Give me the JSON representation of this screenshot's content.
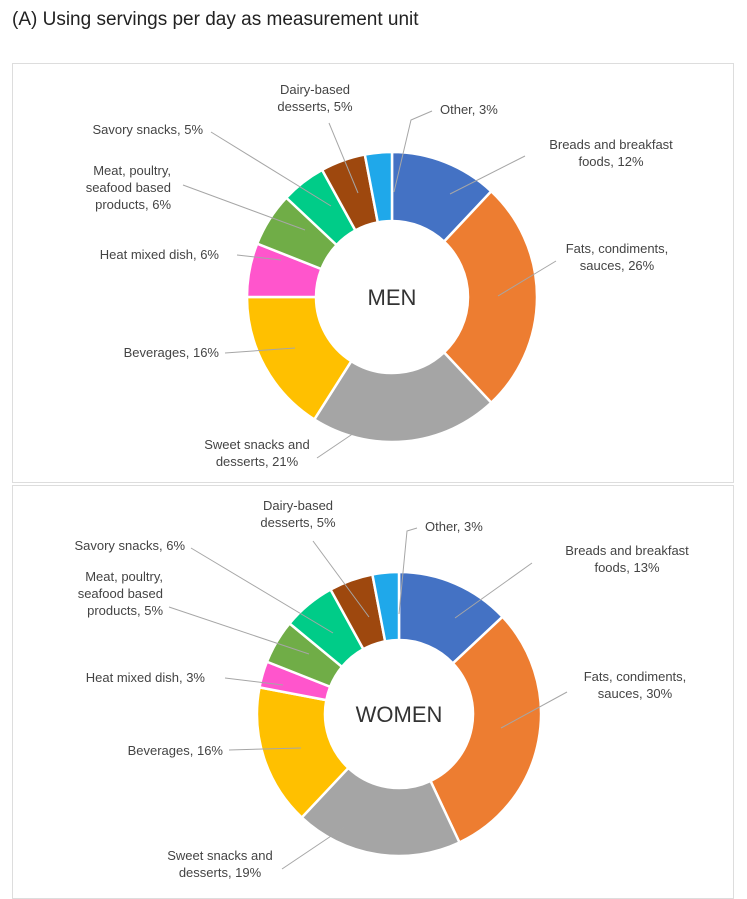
{
  "title": "(A) Using servings per day as measurement unit",
  "chart_data": [
    {
      "type": "pie",
      "center_label": "MEN",
      "slices": [
        {
          "key": "breads",
          "lines": [
            "Breads and breakfast",
            "foods, 12%"
          ],
          "value": 12,
          "color": "#4472c4"
        },
        {
          "key": "fats",
          "lines": [
            "Fats, condiments,",
            "sauces, 26%"
          ],
          "value": 26,
          "color": "#ed7d31"
        },
        {
          "key": "sweet",
          "lines": [
            "Sweet snacks and",
            "desserts, 21%"
          ],
          "value": 21,
          "color": "#a5a5a5"
        },
        {
          "key": "beverages",
          "lines": [
            "Beverages, 16%"
          ],
          "value": 16,
          "color": "#ffc000"
        },
        {
          "key": "heat",
          "lines": [
            "Heat mixed dish, 6%"
          ],
          "value": 6,
          "color": "#ff55cc"
        },
        {
          "key": "meat",
          "lines": [
            "Meat, poultry,",
            "seafood based",
            "products, 6%"
          ],
          "value": 6,
          "color": "#70ad47"
        },
        {
          "key": "savory",
          "lines": [
            "Savory snacks, 5%"
          ],
          "value": 5,
          "color": "#00cc88"
        },
        {
          "key": "dairy",
          "lines": [
            "Dairy-based",
            "desserts, 5%"
          ],
          "value": 5,
          "color": "#9e480e"
        },
        {
          "key": "other",
          "lines": [
            "Other, 3%"
          ],
          "value": 3,
          "color": "#1fa8ea"
        }
      ]
    },
    {
      "type": "pie",
      "center_label": "WOMEN",
      "slices": [
        {
          "key": "breads",
          "lines": [
            "Breads and breakfast",
            "foods, 13%"
          ],
          "value": 13,
          "color": "#4472c4"
        },
        {
          "key": "fats",
          "lines": [
            "Fats, condiments,",
            "sauces, 30%"
          ],
          "value": 30,
          "color": "#ed7d31"
        },
        {
          "key": "sweet",
          "lines": [
            "Sweet snacks and",
            "desserts, 19%"
          ],
          "value": 19,
          "color": "#a5a5a5"
        },
        {
          "key": "beverages",
          "lines": [
            "Beverages, 16%"
          ],
          "value": 16,
          "color": "#ffc000"
        },
        {
          "key": "heat",
          "lines": [
            "Heat mixed dish, 3%"
          ],
          "value": 3,
          "color": "#ff55cc"
        },
        {
          "key": "meat",
          "lines": [
            "Meat, poultry,",
            "seafood based",
            "products, 5%"
          ],
          "value": 5,
          "color": "#70ad47"
        },
        {
          "key": "savory",
          "lines": [
            "Savory snacks, 6%"
          ],
          "value": 6,
          "color": "#00cc88"
        },
        {
          "key": "dairy",
          "lines": [
            "Dairy-based",
            "desserts, 5%"
          ],
          "value": 5,
          "color": "#9e480e"
        },
        {
          "key": "other",
          "lines": [
            "Other, 3%"
          ],
          "value": 3,
          "color": "#1fa8ea"
        }
      ]
    }
  ]
}
